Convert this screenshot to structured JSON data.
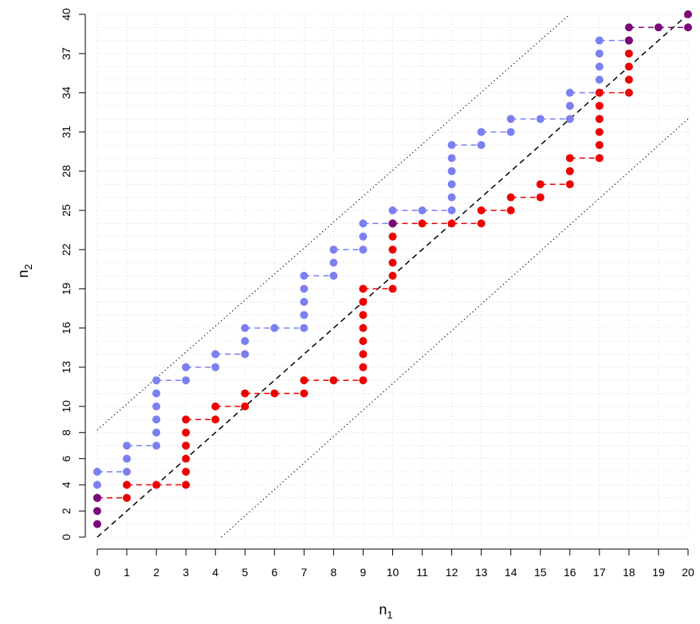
{
  "chart_data": {
    "type": "scatter",
    "title": "",
    "xlabel": "n",
    "xlabel_sub": "1",
    "ylabel": "n",
    "ylabel_sub": "2",
    "xlim": [
      0,
      20
    ],
    "ylim": [
      0,
      40
    ],
    "xticks": [
      0,
      1,
      2,
      3,
      4,
      5,
      6,
      7,
      8,
      9,
      10,
      11,
      12,
      13,
      14,
      15,
      16,
      17,
      18,
      19,
      20
    ],
    "yticks": [
      0,
      2,
      4,
      6,
      8,
      10,
      13,
      16,
      19,
      22,
      25,
      28,
      31,
      34,
      37,
      40
    ],
    "xtick_labels": [
      "0",
      "1",
      "2",
      "3",
      "4",
      "5",
      "6",
      "7",
      "8",
      "9",
      "10",
      "11",
      "12",
      "13",
      "14",
      "15",
      "16",
      "17",
      "18",
      "19",
      "20"
    ],
    "ytick_labels": [
      "0",
      "2",
      "4",
      "6",
      "8",
      "10",
      "13",
      "16",
      "19",
      "22",
      "25",
      "28",
      "31",
      "34",
      "37",
      "40"
    ],
    "grid": true,
    "reference_lines": [
      {
        "style": "dashed",
        "from": [
          0,
          0
        ],
        "to": [
          20,
          40
        ]
      },
      {
        "style": "dotted",
        "from": [
          0,
          8.2
        ],
        "to": [
          16,
          40
        ]
      },
      {
        "style": "dotted",
        "from": [
          4.2,
          0
        ],
        "to": [
          20,
          32
        ]
      }
    ],
    "colors": {
      "blue": "#7b7ff0",
      "red": "#ee0000",
      "purple": "#7a0a7a",
      "grid": "#cfcfcf"
    },
    "series": [
      {
        "color": "blue",
        "points": [
          [
            0,
            3
          ],
          [
            0,
            4
          ],
          [
            0,
            5
          ],
          [
            1,
            5
          ],
          [
            1,
            6
          ],
          [
            1,
            7
          ],
          [
            2,
            7
          ],
          [
            2,
            8
          ],
          [
            2,
            9
          ],
          [
            2,
            10
          ],
          [
            2,
            11
          ],
          [
            2,
            12
          ],
          [
            3,
            12
          ],
          [
            3,
            13
          ],
          [
            4,
            13
          ],
          [
            4,
            14
          ],
          [
            5,
            14
          ],
          [
            5,
            15
          ],
          [
            5,
            16
          ],
          [
            6,
            16
          ],
          [
            7,
            16
          ],
          [
            7,
            17
          ],
          [
            7,
            18
          ],
          [
            7,
            19
          ],
          [
            7,
            20
          ],
          [
            8,
            20
          ],
          [
            8,
            21
          ],
          [
            8,
            22
          ],
          [
            9,
            22
          ],
          [
            9,
            23
          ],
          [
            9,
            24
          ],
          [
            10,
            24
          ],
          [
            10,
            25
          ],
          [
            11,
            25
          ],
          [
            12,
            25
          ],
          [
            12,
            26
          ],
          [
            12,
            27
          ],
          [
            12,
            28
          ],
          [
            12,
            29
          ],
          [
            12,
            30
          ],
          [
            13,
            30
          ],
          [
            13,
            31
          ],
          [
            14,
            31
          ],
          [
            14,
            32
          ],
          [
            15,
            32
          ],
          [
            16,
            32
          ],
          [
            16,
            33
          ],
          [
            16,
            34
          ],
          [
            17,
            34
          ],
          [
            17,
            35
          ],
          [
            17,
            36
          ],
          [
            17,
            37
          ],
          [
            17,
            38
          ],
          [
            18,
            38
          ]
        ]
      },
      {
        "color": "red",
        "points": [
          [
            0,
            3
          ],
          [
            1,
            3
          ],
          [
            1,
            4
          ],
          [
            2,
            4
          ],
          [
            3,
            4
          ],
          [
            3,
            5
          ],
          [
            3,
            6
          ],
          [
            3,
            7
          ],
          [
            3,
            8
          ],
          [
            3,
            9
          ],
          [
            4,
            9
          ],
          [
            4,
            10
          ],
          [
            5,
            10
          ],
          [
            5,
            11
          ],
          [
            6,
            11
          ],
          [
            7,
            11
          ],
          [
            7,
            12
          ],
          [
            8,
            12
          ],
          [
            9,
            12
          ],
          [
            9,
            13
          ],
          [
            9,
            14
          ],
          [
            9,
            15
          ],
          [
            9,
            16
          ],
          [
            9,
            17
          ],
          [
            9,
            18
          ],
          [
            9,
            19
          ],
          [
            10,
            19
          ],
          [
            10,
            20
          ],
          [
            10,
            21
          ],
          [
            10,
            22
          ],
          [
            10,
            23
          ],
          [
            10,
            24
          ],
          [
            11,
            24
          ],
          [
            12,
            24
          ],
          [
            13,
            24
          ],
          [
            13,
            25
          ],
          [
            14,
            25
          ],
          [
            14,
            26
          ],
          [
            15,
            26
          ],
          [
            15,
            27
          ],
          [
            16,
            27
          ],
          [
            16,
            28
          ],
          [
            16,
            29
          ],
          [
            17,
            29
          ],
          [
            17,
            30
          ],
          [
            17,
            31
          ],
          [
            17,
            32
          ],
          [
            17,
            33
          ],
          [
            17,
            34
          ],
          [
            18,
            34
          ],
          [
            18,
            35
          ],
          [
            18,
            36
          ],
          [
            18,
            37
          ],
          [
            18,
            38
          ]
        ]
      },
      {
        "color": "purple",
        "points": [
          [
            0,
            1
          ],
          [
            0,
            2
          ],
          [
            0,
            3
          ],
          [
            10,
            24
          ],
          [
            18,
            38
          ],
          [
            18,
            39
          ],
          [
            19,
            39
          ],
          [
            20,
            39
          ],
          [
            20,
            40
          ]
        ]
      }
    ]
  }
}
